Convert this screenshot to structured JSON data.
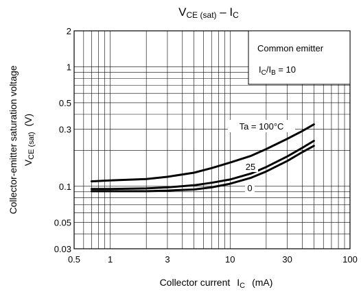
{
  "chart_data": {
    "type": "line",
    "title": {
      "main": "V",
      "sub": "CE (sat)",
      "dash": " – I",
      "sub2": "C"
    },
    "xlabel": {
      "text": "Collector current",
      "symbol": "I",
      "symbol_sub": "C",
      "unit": "(mA)"
    },
    "ylabel": {
      "line1": "Collector-emitter saturation voltage",
      "line2_main": "V",
      "line2_sub": "CE (sat)",
      "unit": "(V)"
    },
    "x_scale": "log",
    "y_scale": "log",
    "xlim": [
      0.5,
      100
    ],
    "ylim": [
      0.03,
      2
    ],
    "x_ticks": [
      "0.5",
      "1",
      "3",
      "10",
      "30",
      "100"
    ],
    "y_ticks": [
      "0.03",
      "0.05",
      "0.1",
      "0.3",
      "0.5",
      "1",
      "2"
    ],
    "grid": true,
    "legend_box": {
      "line1": "Common emitter",
      "line2_main": "I",
      "line2_sub1": "C",
      "line2_mid": "/I",
      "line2_sub2": "B",
      "line2_end": " = 10"
    },
    "series": [
      {
        "name": "Ta = 100°C",
        "x": [
          0.7,
          1,
          2,
          3,
          5,
          7,
          10,
          15,
          20,
          30,
          40,
          50
        ],
        "y": [
          0.11,
          0.112,
          0.115,
          0.12,
          0.13,
          0.142,
          0.158,
          0.18,
          0.205,
          0.25,
          0.29,
          0.33
        ]
      },
      {
        "name": "25",
        "x": [
          0.7,
          1,
          2,
          3,
          5,
          7,
          10,
          15,
          20,
          30,
          40,
          50
        ],
        "y": [
          0.095,
          0.095,
          0.096,
          0.098,
          0.102,
          0.107,
          0.114,
          0.128,
          0.145,
          0.178,
          0.21,
          0.24
        ]
      },
      {
        "name": "0",
        "x": [
          0.7,
          1,
          2,
          3,
          5,
          7,
          10,
          15,
          20,
          30,
          40,
          50
        ],
        "y": [
          0.091,
          0.091,
          0.091,
          0.092,
          0.094,
          0.098,
          0.105,
          0.118,
          0.133,
          0.163,
          0.193,
          0.218
        ]
      }
    ]
  }
}
